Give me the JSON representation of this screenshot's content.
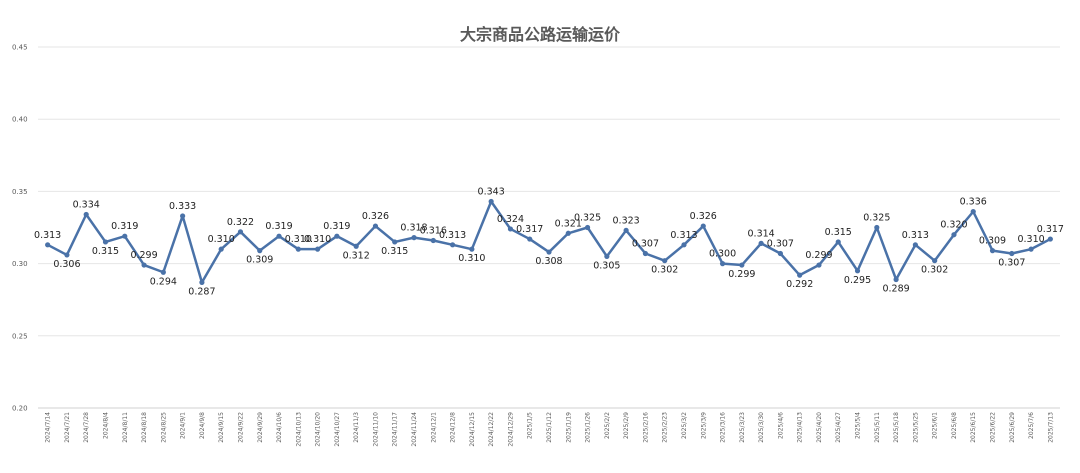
{
  "chart_data": {
    "type": "line",
    "title": "大宗商品公路运输运价",
    "xlabel": "",
    "ylabel": "",
    "ylim": [
      0.2,
      0.45
    ],
    "yticks": [
      "0.20",
      "0.25",
      "0.30",
      "0.35",
      "0.40",
      "0.45"
    ],
    "grid": true,
    "legend": "none",
    "line_color": "#4a72a8",
    "categories": [
      "2024/7/14",
      "2024/7/21",
      "2024/7/28",
      "2024/8/4",
      "2024/8/11",
      "2024/8/18",
      "2024/8/25",
      "2024/9/1",
      "2024/9/8",
      "2024/9/15",
      "2024/9/22",
      "2024/9/29",
      "2024/10/6",
      "2024/10/13",
      "2024/10/20",
      "2024/10/27",
      "2024/11/3",
      "2024/11/10",
      "2024/11/17",
      "2024/11/24",
      "2024/12/1",
      "2024/12/8",
      "2024/12/15",
      "2024/12/22",
      "2024/12/29",
      "2025/1/5",
      "2025/1/12",
      "2025/1/19",
      "2025/1/26",
      "2025/2/2",
      "2025/2/9",
      "2025/2/16",
      "2025/2/23",
      "2025/3/2",
      "2025/3/9",
      "2025/3/16",
      "2025/3/23",
      "2025/3/30",
      "2025/4/6",
      "2025/4/13",
      "2025/4/20",
      "2025/4/27",
      "2025/5/4",
      "2025/5/11",
      "2025/5/18",
      "2025/5/25",
      "2025/6/1",
      "2025/6/8",
      "2025/6/15",
      "2025/6/22",
      "2025/6/29",
      "2025/7/6",
      "2025/7/13"
    ],
    "values": [
      0.313,
      0.306,
      0.334,
      0.315,
      0.319,
      0.299,
      0.294,
      0.333,
      0.287,
      0.31,
      0.322,
      0.309,
      0.319,
      0.31,
      0.31,
      0.319,
      0.312,
      0.326,
      0.315,
      0.318,
      0.316,
      0.313,
      0.31,
      0.343,
      0.324,
      0.317,
      0.308,
      0.321,
      0.325,
      0.305,
      0.323,
      0.307,
      0.302,
      0.313,
      0.326,
      0.3,
      0.299,
      0.314,
      0.307,
      0.292,
      0.299,
      0.315,
      0.295,
      0.325,
      0.289,
      0.313,
      0.302,
      0.32,
      0.336,
      0.309,
      0.307,
      0.31,
      0.317
    ]
  }
}
